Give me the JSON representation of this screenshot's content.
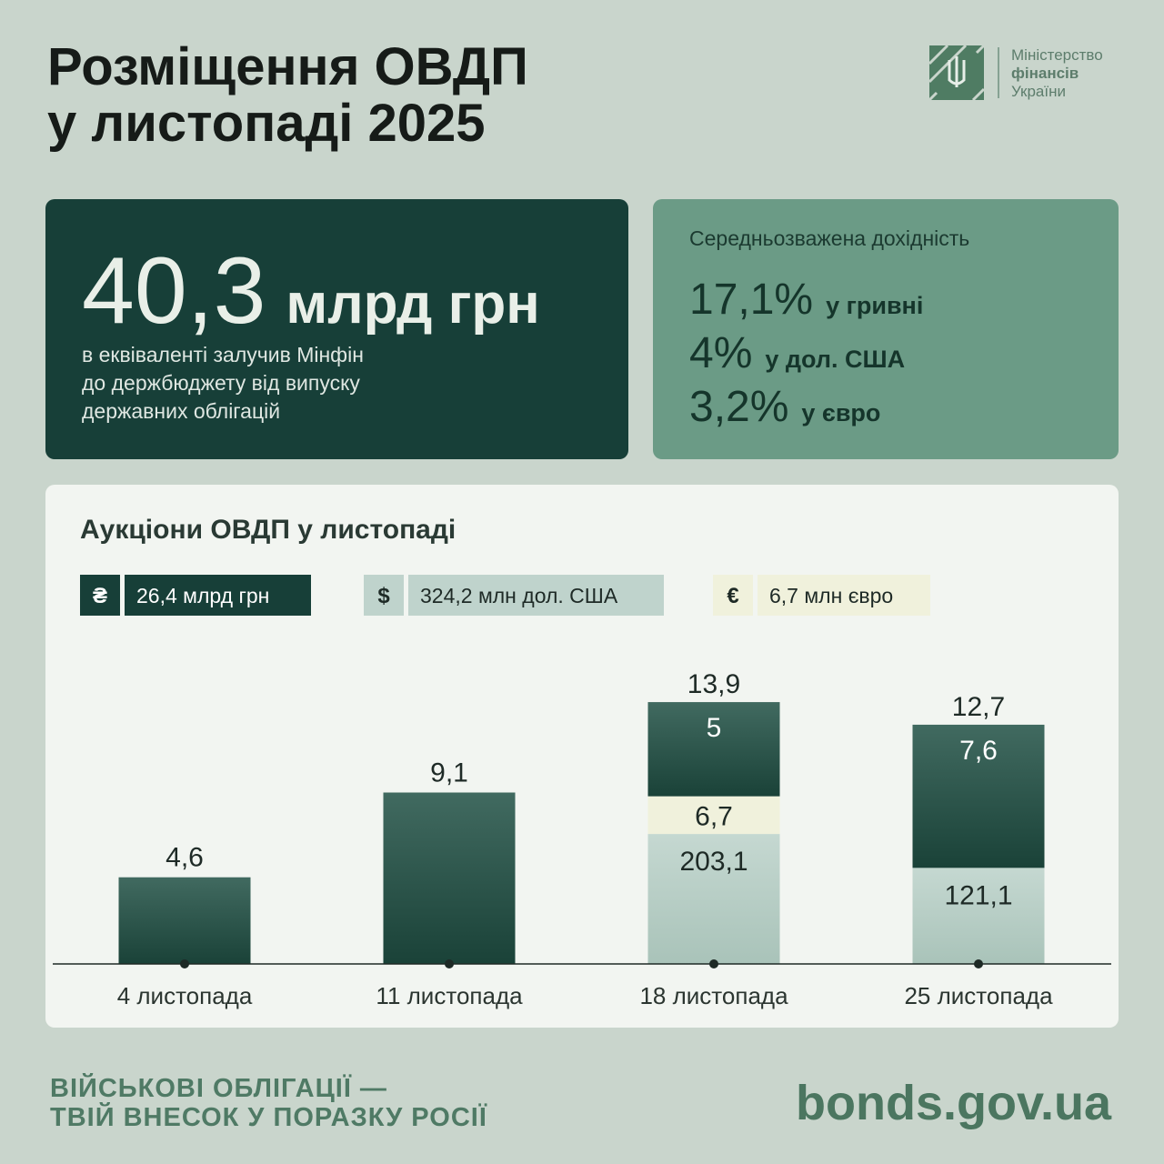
{
  "header": {
    "title_lines": [
      "Розміщення ОВДП",
      "у листопаді 2025"
    ],
    "logo_lines": [
      "Міністерство",
      "фінансів",
      "України"
    ]
  },
  "summary": {
    "amount": "40,3",
    "unit": "млрд грн",
    "description_lines": [
      "в еквіваленті залучив Мінфін",
      "до держбюджету від випуску",
      "державних облігацій"
    ]
  },
  "yields": {
    "title": "Середньозважена дохідність",
    "items": [
      {
        "value": "17,1%",
        "label": "у гривні"
      },
      {
        "value": "4%",
        "label": "у дол. США"
      },
      {
        "value": "3,2%",
        "label": "у євро"
      }
    ]
  },
  "chart_data": {
    "type": "bar",
    "stacked": true,
    "title": "Аукціони ОВДП у листопаді",
    "categories": [
      "4 листопада",
      "11 листопада",
      "18 листопада",
      "25 листопада"
    ],
    "ylim": [
      0,
      14
    ],
    "totals": [
      null,
      null,
      13.9,
      12.7
    ],
    "total_labels": [
      null,
      null,
      "13,9",
      "12,7"
    ],
    "series": [
      {
        "symbol": "₴",
        "name": "26,4 млрд грн",
        "color": "#1f4a40",
        "text_color": "#ffffff",
        "values": [
          4.6,
          9.1,
          5,
          7.6
        ],
        "value_labels": [
          "4,6",
          "9,1",
          "5",
          "7,6"
        ]
      },
      {
        "symbol": "$",
        "name": "324,2 млн дол. США",
        "color": "#bfd3cc",
        "text_color": "#1e2a26",
        "values": [
          null,
          null,
          6.9,
          5.1
        ],
        "amounts": [
          null,
          null,
          203.1,
          121.1
        ],
        "amount_labels": [
          null,
          null,
          "203,1",
          "121,1"
        ]
      },
      {
        "symbol": "€",
        "name": "6,7 млн євро",
        "color": "#f0f1dc",
        "text_color": "#1e2a26",
        "values": [
          null,
          null,
          2,
          null
        ],
        "amounts": [
          null,
          null,
          6.7,
          null
        ],
        "amount_labels": [
          null,
          null,
          "6,7",
          null
        ]
      }
    ]
  },
  "footer": {
    "slogan_lines": [
      "ВІЙСЬКОВІ ОБЛІГАЦІЇ —",
      "ТВІЙ ВНЕСОК У ПОРАЗКУ РОСІЇ"
    ],
    "site": "bonds.gov.ua"
  }
}
